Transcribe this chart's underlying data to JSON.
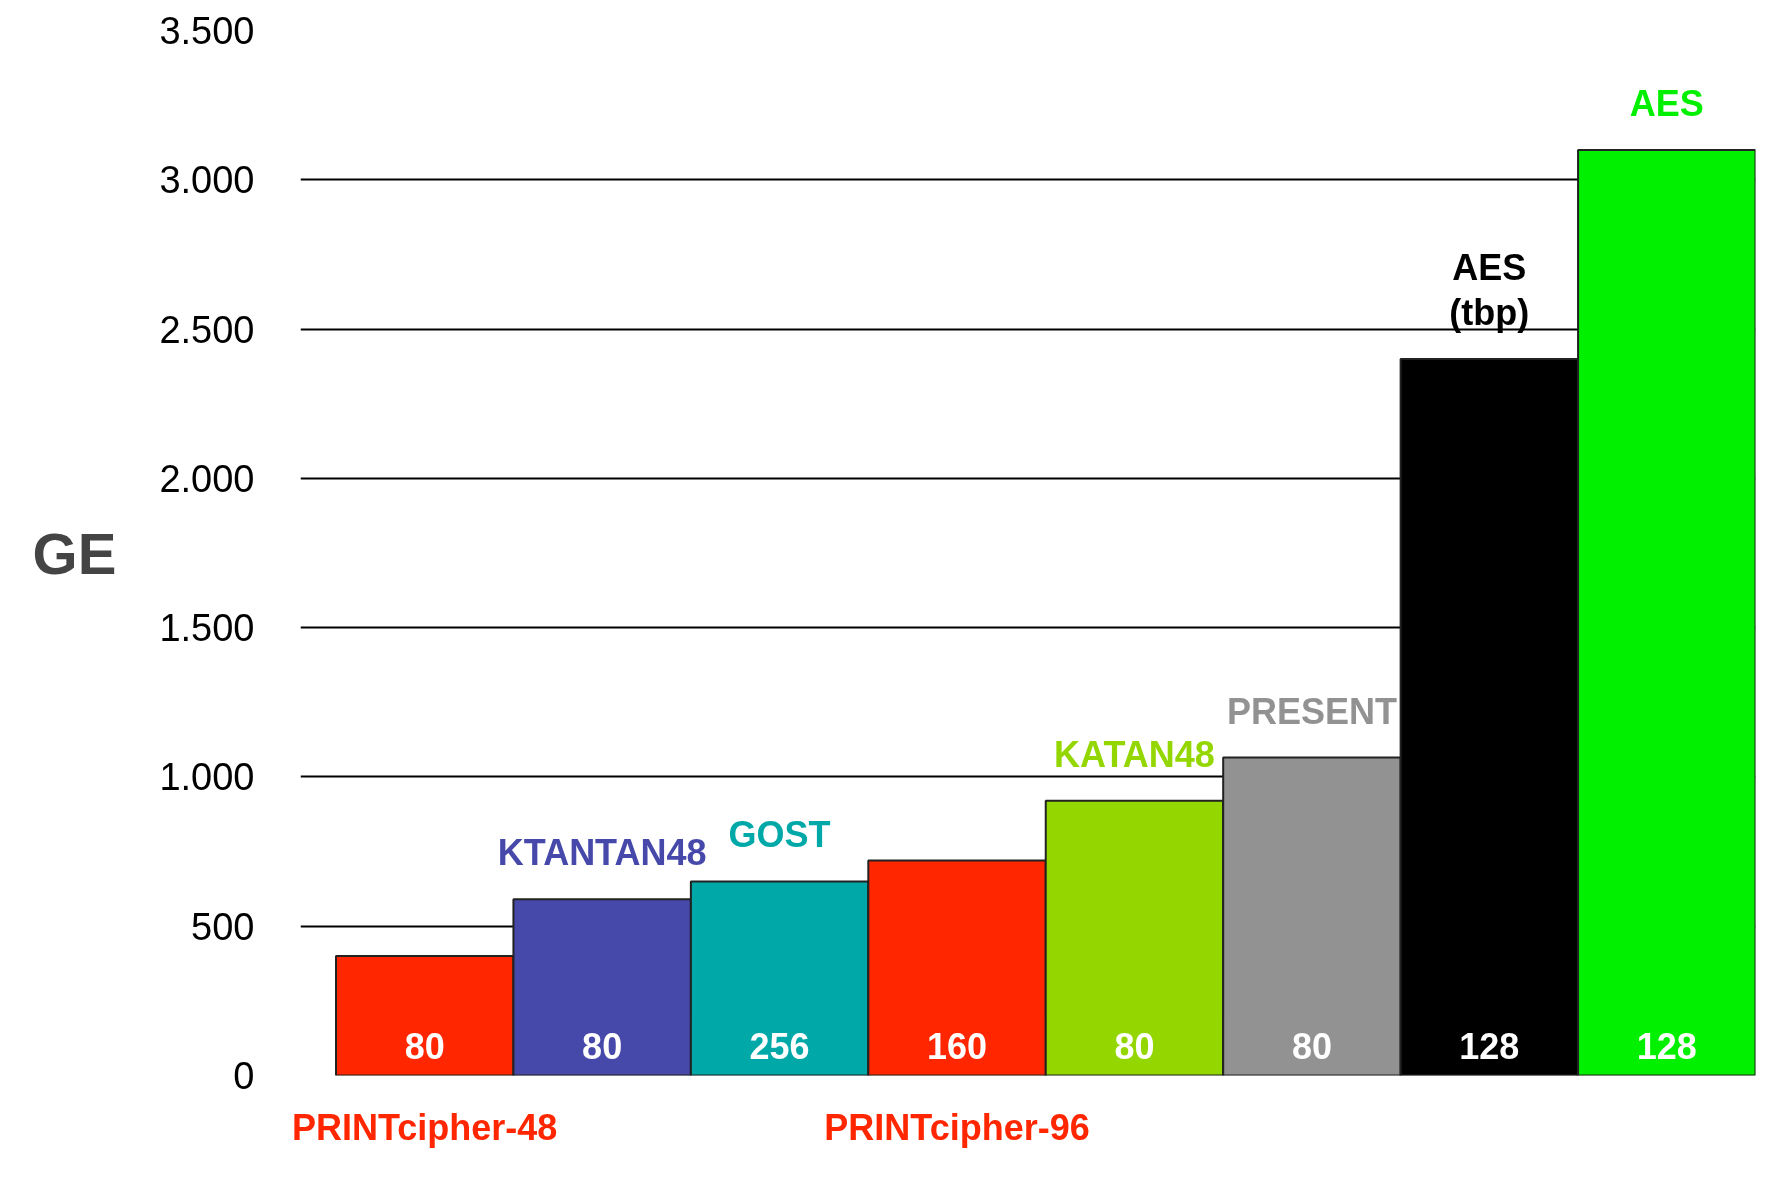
{
  "chart_data": {
    "type": "bar",
    "ylabel": "GE",
    "categories": [
      "PRINTcipher-48",
      "KTANTAN48",
      "GOST",
      "PRINTcipher-96",
      "KATAN48",
      "PRESENT",
      "AES\n(tbp)",
      "AES"
    ],
    "values": [
      400,
      590,
      650,
      720,
      920,
      1065,
      2400,
      3100
    ],
    "colors": [
      "#ff2600",
      "#4649aa",
      "#00a8a8",
      "#ff2600",
      "#94d600",
      "#929292",
      "#000000",
      "#00f000"
    ],
    "ylim": [
      0,
      3500
    ],
    "yticks": [
      0,
      {
        "value": 500,
        "label": "500"
      },
      {
        "value": 1000,
        "label": "1.000"
      },
      {
        "value": 1500,
        "label": "1.500"
      },
      {
        "value": 2000,
        "label": "2.000"
      },
      {
        "value": 2500,
        "label": "2.500"
      },
      {
        "value": 3000,
        "label": "3.000"
      },
      {
        "value": 3500,
        "label": "3.500"
      }
    ],
    "grid": "y",
    "annotations": [
      "80",
      "80",
      "256",
      "160",
      "80",
      "80",
      "128",
      "128"
    ]
  }
}
